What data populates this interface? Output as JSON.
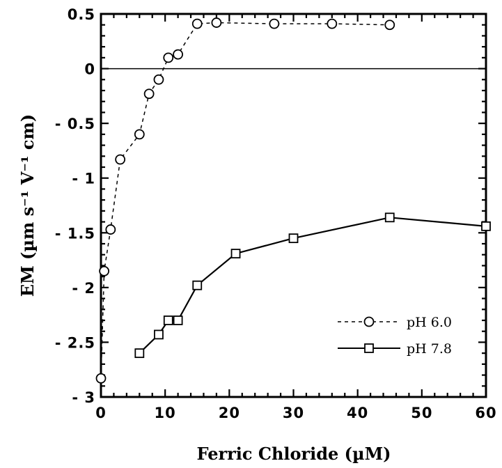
{
  "chart_data": {
    "type": "line",
    "xlabel": "Ferric Chloride (µM)",
    "ylabel": "EM (µm s⁻¹ V⁻¹ cm)",
    "xlim": [
      0,
      60
    ],
    "ylim": [
      -3,
      0.5
    ],
    "x_ticks": [
      0,
      10,
      20,
      30,
      40,
      50,
      60
    ],
    "x_tick_labels": [
      "0",
      "10",
      "20",
      "30",
      "40",
      "50",
      "60"
    ],
    "y_ticks": [
      0.5,
      0,
      -0.5,
      -1,
      -1.5,
      -2,
      -2.5,
      -3
    ],
    "y_tick_labels": [
      "0.5",
      "0",
      "- 0.5",
      "- 1",
      "- 1.5",
      "- 2",
      "- 2.5",
      "- 3"
    ],
    "reference_line_y": 0,
    "legend_position": "bottom-right",
    "series": [
      {
        "name": "pH 6.0",
        "marker": "circle",
        "line_style": "dashed",
        "x": [
          0,
          0.5,
          1.5,
          3,
          6,
          7.5,
          9,
          10.5,
          12,
          15,
          18,
          27,
          36,
          45
        ],
        "y": [
          -2.83,
          -1.85,
          -1.47,
          -0.83,
          -0.6,
          -0.23,
          -0.1,
          0.1,
          0.13,
          0.41,
          0.42,
          0.41,
          0.41,
          0.4
        ]
      },
      {
        "name": "pH 7.8",
        "marker": "square",
        "line_style": "solid",
        "x": [
          6,
          9,
          10.5,
          12,
          15,
          21,
          30,
          45,
          60
        ],
        "y": [
          -2.6,
          -2.43,
          -2.3,
          -2.3,
          -1.98,
          -1.69,
          -1.55,
          -1.36,
          -1.44
        ]
      }
    ]
  }
}
